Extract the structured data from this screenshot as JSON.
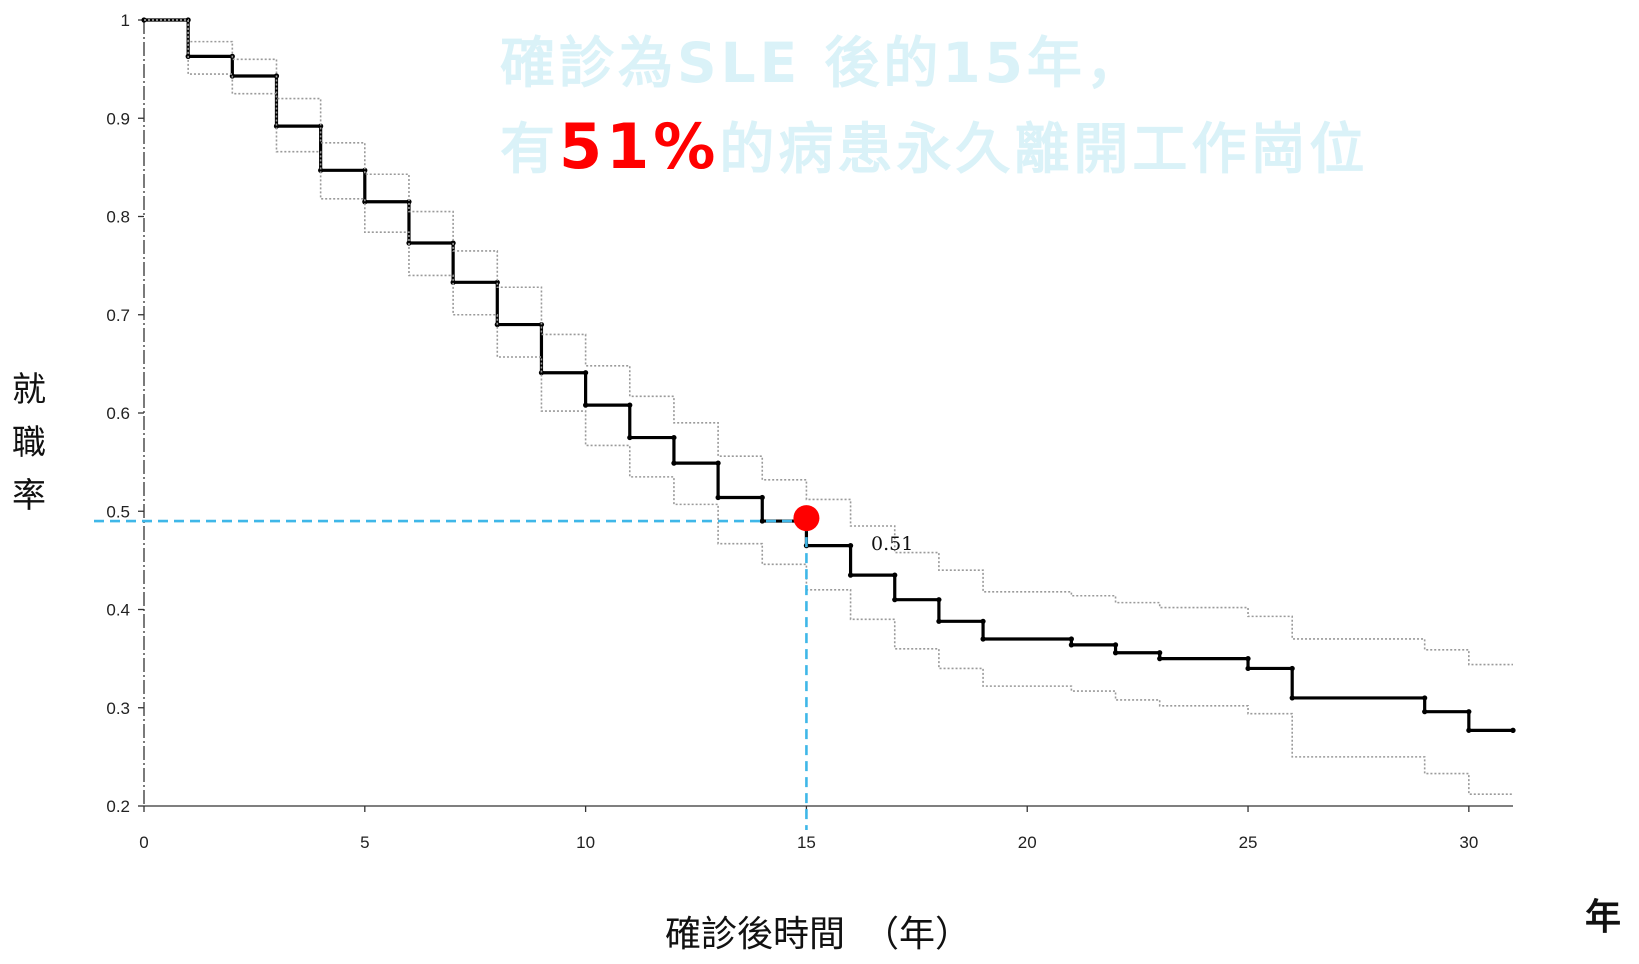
{
  "chart_data": {
    "type": "line",
    "step": true,
    "title_line1": "確診為SLE 後的15年，",
    "title_line2_prefix": "有",
    "title_line2_highlight": "51%",
    "title_line2_suffix": "的病患永久離開工作崗位",
    "ylabel": "就職率",
    "xlabel": "確診後時間　（年）",
    "xunit": "年",
    "xlim": [
      0,
      31
    ],
    "ylim": [
      0.2,
      1
    ],
    "xticks": [
      0,
      5,
      10,
      15,
      20,
      25,
      30
    ],
    "yticks": [
      "0.2",
      "0.3",
      "0.4",
      "0.5",
      "0.6",
      "0.7",
      "0.8",
      "0.9",
      "1"
    ],
    "grid": false,
    "series": [
      {
        "role": "estimate",
        "x": [
          0,
          1,
          2,
          3,
          4,
          5,
          6,
          7,
          8,
          9,
          10,
          11,
          12,
          13,
          14,
          15,
          16,
          17,
          18,
          19,
          21,
          22,
          23,
          25,
          26,
          29,
          30,
          31
        ],
        "y": [
          1,
          0.963,
          0.943,
          0.892,
          0.847,
          0.815,
          0.773,
          0.733,
          0.69,
          0.641,
          0.608,
          0.575,
          0.549,
          0.514,
          0.49,
          0.465,
          0.435,
          0.41,
          0.388,
          0.37,
          0.364,
          0.356,
          0.35,
          0.34,
          0.31,
          0.296,
          0.277,
          0.277
        ]
      },
      {
        "role": "upper-ci",
        "x": [
          0,
          1,
          2,
          3,
          4,
          5,
          6,
          7,
          8,
          9,
          10,
          11,
          12,
          13,
          14,
          15,
          16,
          17,
          18,
          19,
          21,
          22,
          23,
          25,
          26,
          29,
          30,
          31
        ],
        "y": [
          1,
          0.978,
          0.96,
          0.92,
          0.875,
          0.843,
          0.805,
          0.765,
          0.728,
          0.68,
          0.648,
          0.617,
          0.59,
          0.556,
          0.532,
          0.512,
          0.485,
          0.458,
          0.44,
          0.418,
          0.414,
          0.407,
          0.402,
          0.393,
          0.37,
          0.359,
          0.344,
          0.344
        ]
      },
      {
        "role": "lower-ci",
        "x": [
          0,
          1,
          2,
          3,
          4,
          5,
          6,
          7,
          8,
          9,
          10,
          11,
          12,
          13,
          14,
          15,
          16,
          17,
          18,
          19,
          21,
          22,
          23,
          25,
          26,
          29,
          30,
          31
        ],
        "y": [
          1,
          0.945,
          0.925,
          0.866,
          0.818,
          0.784,
          0.74,
          0.7,
          0.657,
          0.602,
          0.567,
          0.535,
          0.507,
          0.467,
          0.446,
          0.42,
          0.39,
          0.36,
          0.34,
          0.322,
          0.317,
          0.308,
          0.302,
          0.294,
          0.25,
          0.233,
          0.212,
          0.212
        ]
      }
    ],
    "highlight_point": {
      "x": 15,
      "y": 0.49,
      "label": "0.51"
    },
    "colors": {
      "estimate": "#000000",
      "ci": "#9a9a9a",
      "guide": "#3fb7e8",
      "marker": "#ff0000",
      "title": "#daf2f8",
      "highlight": "#ff0000"
    }
  }
}
